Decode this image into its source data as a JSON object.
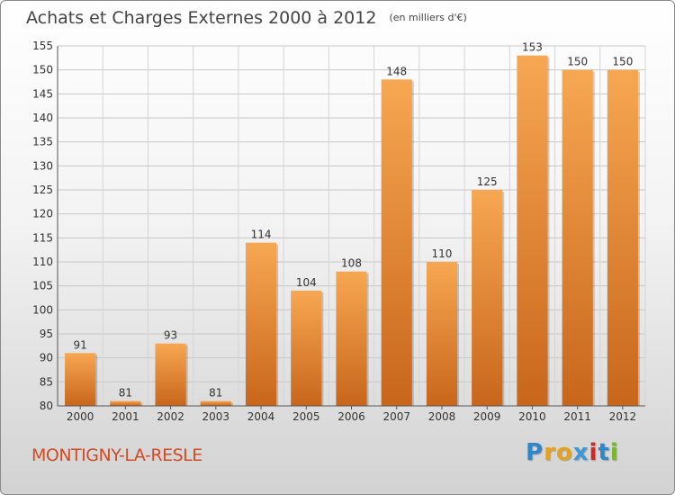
{
  "header": {
    "title": "Achats et Charges Externes 2000 à 2012",
    "unit": "(en milliers d'€)"
  },
  "footer": {
    "place": "MONTIGNY-LA-RESLE",
    "logo_letters": [
      "P",
      "r",
      "o",
      "x",
      "i",
      "t",
      "i"
    ]
  },
  "colors": {
    "bar_light": "#f7a752",
    "bar_dark": "#c8661b",
    "place": "#d24b23"
  },
  "chart_data": {
    "type": "bar",
    "title": "Achats et Charges Externes 2000 à 2012",
    "subtitle": "(en milliers d'€)",
    "categories": [
      "2000",
      "2001",
      "2002",
      "2003",
      "2004",
      "2005",
      "2006",
      "2007",
      "2008",
      "2009",
      "2010",
      "2011",
      "2012"
    ],
    "values": [
      91,
      81,
      93,
      81,
      114,
      104,
      108,
      148,
      110,
      125,
      153,
      150,
      150
    ],
    "ylim": [
      80,
      155
    ],
    "yticks": [
      80,
      85,
      90,
      95,
      100,
      105,
      110,
      115,
      120,
      125,
      130,
      135,
      140,
      145,
      150,
      155
    ],
    "grid": true,
    "xlabel": "",
    "ylabel": ""
  }
}
